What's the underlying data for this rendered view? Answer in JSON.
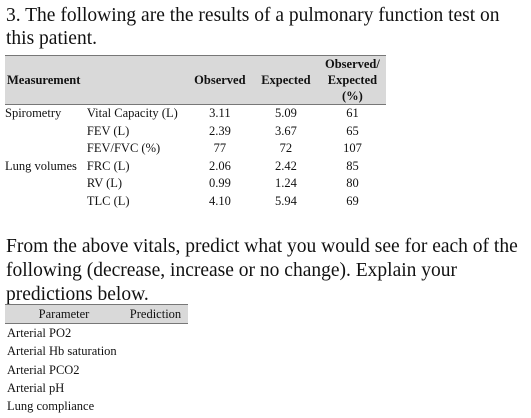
{
  "question": {
    "title": "3. The following are the results of a pulmonary function test on this patient."
  },
  "results_table": {
    "headers": {
      "measurement": "Measurement",
      "observed": "Observed",
      "expected": "Expected",
      "ratio": "Observed/ Expected (%)"
    },
    "rows": [
      {
        "category": "Spirometry",
        "test": "Vital Capacity (L)",
        "observed": "3.11",
        "expected": "5.09",
        "ratio": "61"
      },
      {
        "category": "",
        "test": "FEV (L)",
        "observed": "2.39",
        "expected": "3.67",
        "ratio": "65"
      },
      {
        "category": "",
        "test": "FEV/FVC (%)",
        "observed": "77",
        "expected": "72",
        "ratio": "107"
      },
      {
        "category": "Lung volumes",
        "test": "FRC (L)",
        "observed": "2.06",
        "expected": "2.42",
        "ratio": "85"
      },
      {
        "category": "",
        "test": "RV (L)",
        "observed": "0.99",
        "expected": "1.24",
        "ratio": "80"
      },
      {
        "category": "",
        "test": "TLC (L)",
        "observed": "4.10",
        "expected": "5.94",
        "ratio": "69"
      }
    ]
  },
  "prompt": {
    "text": "From the above vitals, predict what you would see for each of the following (decrease, increase or no change).  Explain your predictions below."
  },
  "params_table": {
    "headers": {
      "parameter": "Parameter",
      "prediction": "Prediction"
    },
    "rows": [
      {
        "name": "Arterial PO2"
      },
      {
        "name": "Arterial Hb saturation"
      },
      {
        "name": "Arterial PCO2"
      },
      {
        "name": "Arterial pH"
      },
      {
        "name": "Lung compliance"
      }
    ]
  }
}
